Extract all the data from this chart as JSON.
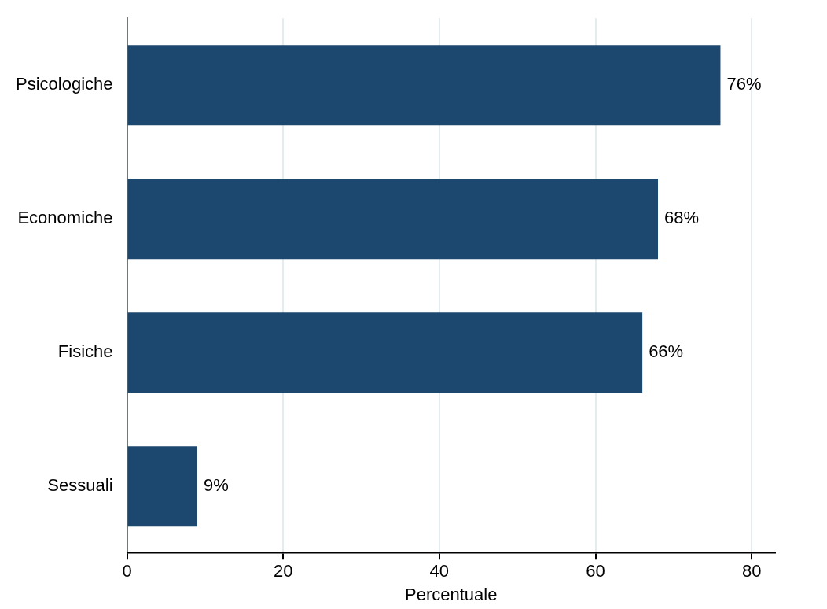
{
  "chart_data": {
    "type": "bar",
    "orientation": "horizontal",
    "xlabel": "Percentuale",
    "categories": [
      "Psicologiche",
      "Economiche",
      "Fisiche",
      "Sessuali"
    ],
    "values": [
      76,
      68,
      66,
      9
    ],
    "value_labels": [
      "76%",
      "68%",
      "66%",
      "9%"
    ],
    "color": "#1c476e",
    "xlim": [
      0,
      83
    ],
    "xticks": [
      0,
      20,
      40,
      60,
      80
    ],
    "grid": "x",
    "legend": false
  }
}
